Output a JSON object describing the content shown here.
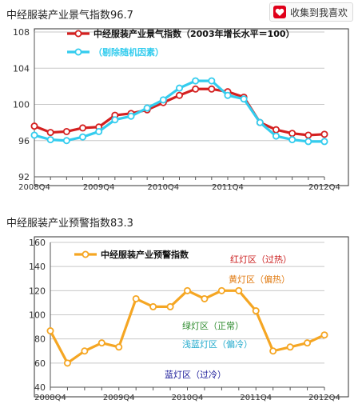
{
  "chart1_title": "中经服装产业景气指数96.7",
  "chart2_title": "中经服装产业预警指数83.3",
  "fav_button_label": "收集到我喜欢",
  "colors": {
    "series_red": "#d42020",
    "series_cyan": "#33ccee",
    "series_orange": "#f5a623",
    "zone_red": "#cc2222",
    "zone_orange": "#e07a10",
    "zone_green": "#2e8b2e",
    "zone_cyan": "#22aacc",
    "zone_blue": "#1a1a99"
  },
  "chart_data": [
    {
      "type": "line",
      "title": "中经服装产业景气指数96.7",
      "x_tick_labels": [
        "2008Q4",
        "2009Q4",
        "2010Q4",
        "2011Q4",
        "2012Q4"
      ],
      "y_ticks": [
        92,
        96,
        100,
        104,
        108
      ],
      "ylim": [
        92,
        108
      ],
      "grid": true,
      "legend_position": "top-left",
      "series": [
        {
          "name": "中经服装产业景气指数（2003年增长水平＝100）",
          "color": "#d42020",
          "values": [
            97.6,
            96.9,
            97.0,
            97.4,
            97.5,
            98.8,
            99.0,
            99.4,
            100.2,
            101.0,
            101.7,
            101.7,
            101.4,
            100.8,
            98.0,
            97.2,
            96.8,
            96.6,
            96.7
          ]
        },
        {
          "name": "（剔除随机因素）",
          "color": "#33ccee",
          "values": [
            96.6,
            96.1,
            96.0,
            96.4,
            97.0,
            98.3,
            98.7,
            99.6,
            100.5,
            101.8,
            102.6,
            102.6,
            101.0,
            100.6,
            98.0,
            96.5,
            96.1,
            95.9,
            95.9
          ]
        }
      ]
    },
    {
      "type": "line",
      "title": "中经服装产业预警指数83.3",
      "x_tick_labels": [
        "2008Q4",
        "2009Q4",
        "2010Q4",
        "2011Q4",
        "2012Q4"
      ],
      "y_ticks": [
        40,
        60,
        80,
        100,
        120,
        140,
        160
      ],
      "ylim": [
        40,
        160
      ],
      "grid": true,
      "legend_position": "top-left",
      "series": [
        {
          "name": "中经服装产业预警指数",
          "color": "#f5a623",
          "values": [
            86.7,
            60.0,
            70.0,
            76.7,
            73.3,
            113.3,
            106.7,
            106.7,
            120.0,
            113.3,
            120.0,
            120.0,
            103.3,
            70.0,
            73.3,
            76.7,
            83.3
          ]
        }
      ],
      "zones": [
        {
          "label": "红灯区（过热）",
          "color": "#cc2222"
        },
        {
          "label": "黄灯区（偏热）",
          "color": "#e07a10"
        },
        {
          "label": "绿灯区（正常）",
          "color": "#2e8b2e"
        },
        {
          "label": "浅蓝灯区（偏冷）",
          "color": "#22aacc"
        },
        {
          "label": "蓝灯区（过冷）",
          "color": "#1a1a99"
        }
      ]
    }
  ]
}
